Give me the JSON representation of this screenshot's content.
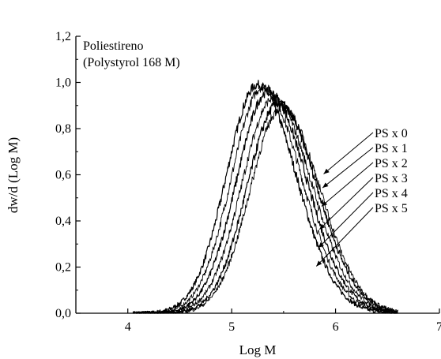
{
  "chart_data": {
    "type": "line",
    "title": "",
    "annotation": [
      "Poliestireno",
      "(Polystyrol 168 M)"
    ],
    "xlabel": "Log M",
    "ylabel": "dw/d (Log M)",
    "xlim": [
      3.5,
      7
    ],
    "ylim": [
      0,
      1.2
    ],
    "x_ticks": [
      4,
      5,
      6,
      7
    ],
    "x_tick_labels": [
      "4",
      "5",
      "6",
      "7"
    ],
    "y_ticks": [
      0,
      0.2,
      0.4,
      0.6,
      0.8,
      1.0,
      1.2
    ],
    "y_tick_labels": [
      "0,0",
      "0,2",
      "0,4",
      "0,6",
      "0,8",
      "1,0",
      "1,2"
    ],
    "grid": false,
    "series": [
      {
        "name": "PS x 0",
        "peak_x": 5.25,
        "peak_y": 0.99,
        "sigma_left": 0.3,
        "sigma_right": 0.37,
        "callout_point": [
          5.87,
          0.6
        ]
      },
      {
        "name": "PS x 1",
        "peak_x": 5.3,
        "peak_y": 0.98,
        "sigma_left": 0.3,
        "sigma_right": 0.37,
        "callout_point": [
          5.86,
          0.54
        ]
      },
      {
        "name": "PS x 2",
        "peak_x": 5.35,
        "peak_y": 0.96,
        "sigma_left": 0.3,
        "sigma_right": 0.37,
        "callout_point": [
          5.85,
          0.46
        ]
      },
      {
        "name": "PS x 3",
        "peak_x": 5.4,
        "peak_y": 0.93,
        "sigma_left": 0.3,
        "sigma_right": 0.37,
        "callout_point": [
          5.83,
          0.36
        ]
      },
      {
        "name": "PS x 4",
        "peak_x": 5.45,
        "peak_y": 0.91,
        "sigma_left": 0.3,
        "sigma_right": 0.37,
        "callout_point": [
          5.82,
          0.28
        ]
      },
      {
        "name": "PS x 5",
        "peak_x": 5.48,
        "peak_y": 0.89,
        "sigma_left": 0.3,
        "sigma_right": 0.37,
        "callout_point": [
          5.8,
          0.2
        ]
      }
    ]
  }
}
